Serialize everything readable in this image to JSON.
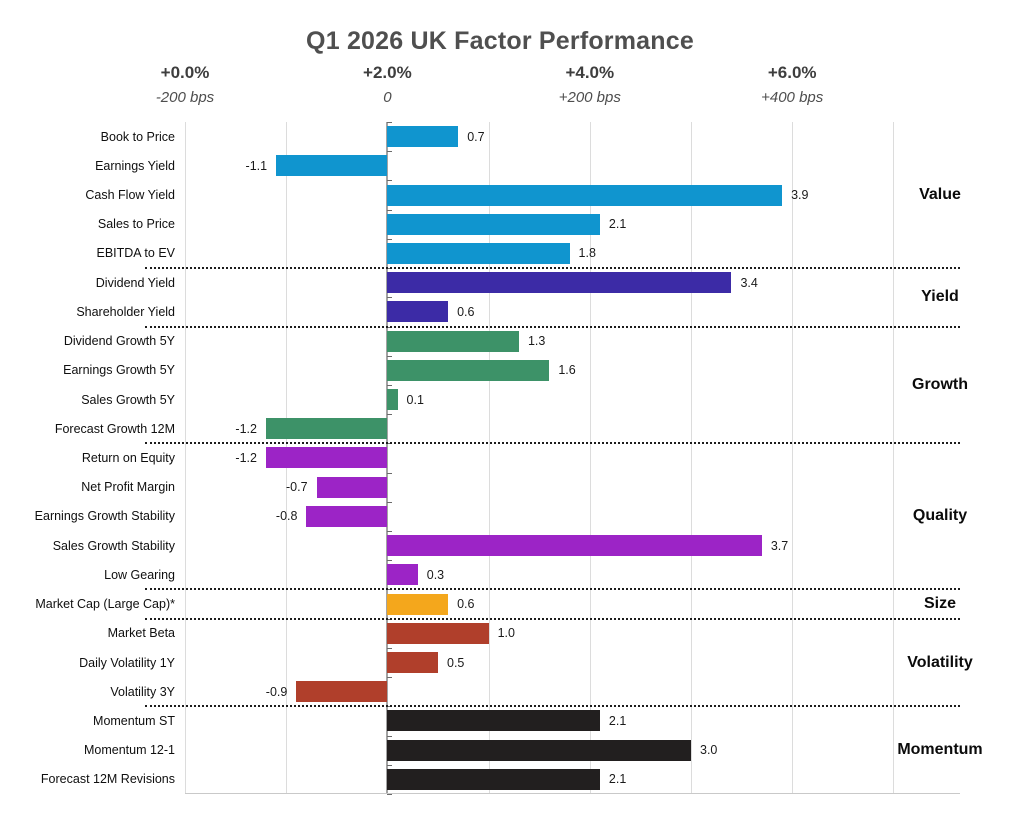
{
  "chart_data": {
    "type": "bar",
    "orientation": "horizontal",
    "title": "Q1 2026 UK Factor Performance",
    "x_axis": {
      "primary_ticks": [
        "+0.0%",
        "+2.0%",
        "+4.0%",
        "+6.0%"
      ],
      "secondary_ticks": [
        "-200 bps",
        "0",
        "+200 bps",
        "+400 bps"
      ],
      "gridline_interval_pct": 1.0,
      "range_pct": [
        0.0,
        7.0
      ],
      "zero_bps_at_pct": "+2.0%",
      "grid_on": true
    },
    "value_label_decimals": 1,
    "groups": [
      {
        "name": "Value",
        "color": "#1095cf",
        "items": [
          {
            "label": "Book to Price",
            "value": 0.7
          },
          {
            "label": "Earnings Yield",
            "value": -1.1
          },
          {
            "label": "Cash Flow Yield",
            "value": 3.9
          },
          {
            "label": "Sales to Price",
            "value": 2.1
          },
          {
            "label": "EBITDA to EV",
            "value": 1.8
          }
        ]
      },
      {
        "name": "Yield",
        "color": "#3c2ba6",
        "items": [
          {
            "label": "Dividend Yield",
            "value": 3.4
          },
          {
            "label": "Shareholder Yield",
            "value": 0.6
          }
        ]
      },
      {
        "name": "Growth",
        "color": "#3d9268",
        "items": [
          {
            "label": "Dividend Growth 5Y",
            "value": 1.3
          },
          {
            "label": "Earnings Growth 5Y",
            "value": 1.6
          },
          {
            "label": "Sales Growth 5Y",
            "value": 0.1
          },
          {
            "label": "Forecast Growth 12M",
            "value": -1.2
          }
        ]
      },
      {
        "name": "Quality",
        "color": "#9c24c6",
        "items": [
          {
            "label": "Return on Equity",
            "value": -1.2
          },
          {
            "label": "Net Profit Margin",
            "value": -0.7
          },
          {
            "label": "Earnings Growth Stability",
            "value": -0.8
          },
          {
            "label": "Sales Growth Stability",
            "value": 3.7
          },
          {
            "label": "Low Gearing",
            "value": 0.3
          }
        ]
      },
      {
        "name": "Size",
        "color": "#f4a71c",
        "items": [
          {
            "label": "Market Cap (Large Cap)*",
            "value": 0.6
          }
        ]
      },
      {
        "name": "Volatility",
        "color": "#b03f2b",
        "items": [
          {
            "label": "Market Beta",
            "value": 1.0
          },
          {
            "label": "Daily Volatility 1Y",
            "value": 0.5
          },
          {
            "label": "Volatility 3Y",
            "value": -0.9
          }
        ]
      },
      {
        "name": "Momentum",
        "color": "#221f1f",
        "items": [
          {
            "label": "Momentum ST",
            "value": 2.1
          },
          {
            "label": "Momentum 12-1",
            "value": 3.0
          },
          {
            "label": "Forecast 12M Revisions",
            "value": 2.1
          }
        ]
      }
    ]
  }
}
